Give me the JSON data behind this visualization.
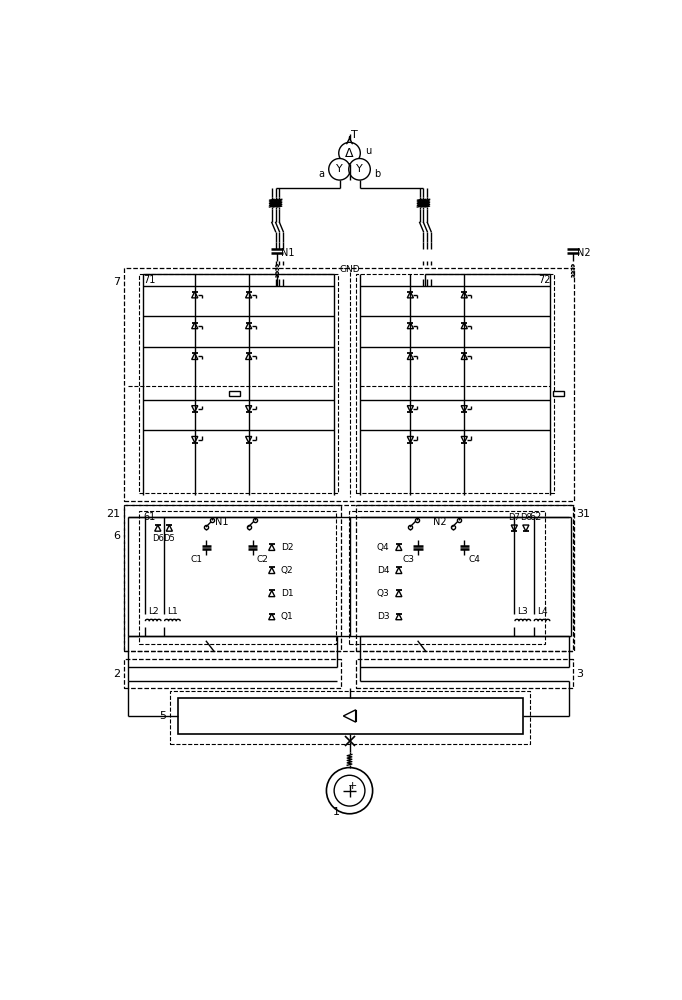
{
  "bg_color": "#ffffff",
  "line_color": "#000000",
  "lw": 1.0,
  "fig_width": 6.82,
  "fig_height": 10.0,
  "labels": {
    "T": "T",
    "u": "u",
    "a": "a",
    "b": "b",
    "N1": "N1",
    "N2": "N2",
    "GND": "GND",
    "7": "7",
    "71": "71",
    "72": "72",
    "21": "21",
    "31": "31",
    "6": "6",
    "61": "61",
    "62": "62",
    "2": "2",
    "3": "3",
    "5": "5",
    "1": "1",
    "C1": "C1",
    "C2": "C2",
    "C3": "C3",
    "C4": "C4",
    "D1": "D1",
    "D2": "D2",
    "D3": "D3",
    "D4": "D4",
    "D5": "D5",
    "D6": "D6",
    "D7": "D7",
    "D8": "D8",
    "Q1": "Q1",
    "Q2": "Q2",
    "Q3": "Q3",
    "Q4": "Q4",
    "L1": "L1",
    "L2": "L2",
    "L3": "L3",
    "L4": "L4",
    "N1b": "N1",
    "N2b": "N2"
  }
}
